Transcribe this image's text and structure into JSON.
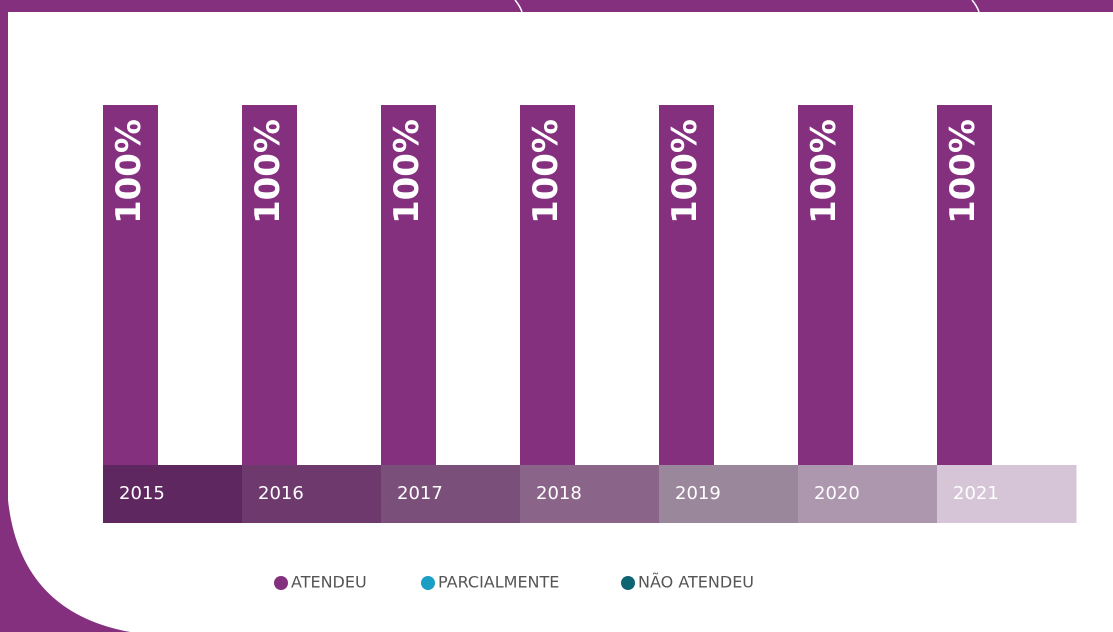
{
  "chart_data": {
    "type": "bar",
    "categories": [
      "2015",
      "2016",
      "2017",
      "2018",
      "2019",
      "2020",
      "2021"
    ],
    "category_colors": [
      "#5e2760",
      "#6e3a6e",
      "#7a4f7a",
      "#8a6589",
      "#9a879b",
      "#ac97ae",
      "#d5c5d6"
    ],
    "series": [
      {
        "name": "ATENDEU",
        "color": "#84307f",
        "values": [
          100,
          100,
          100,
          100,
          100,
          100,
          100
        ],
        "value_labels": [
          "100%",
          "100%",
          "100%",
          "100%",
          "100%",
          "100%",
          "100%"
        ]
      },
      {
        "name": "PARCIALMENTE",
        "color": "#1a9ec6",
        "values": [
          0,
          0,
          0,
          0,
          0,
          0,
          0
        ]
      },
      {
        "name": "NÃO ATENDEU",
        "color": "#0f6472",
        "values": [
          0,
          0,
          0,
          0,
          0,
          0,
          0
        ]
      }
    ],
    "stacked": true,
    "ylim": [
      0,
      100
    ]
  }
}
